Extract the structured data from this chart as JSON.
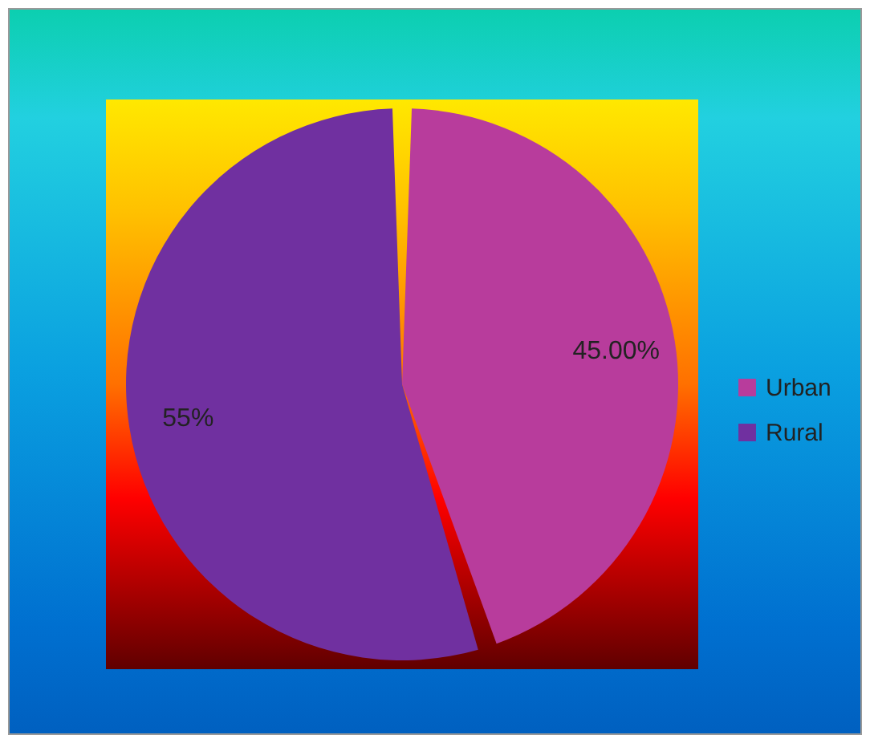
{
  "chart_data": {
    "type": "pie",
    "categories": [
      "Urban",
      "Rural"
    ],
    "values": [
      45,
      55
    ],
    "colors": [
      "#b83c9c",
      "#7030a0"
    ],
    "value_labels": [
      "45.00%",
      "55%"
    ],
    "legend": "right"
  }
}
